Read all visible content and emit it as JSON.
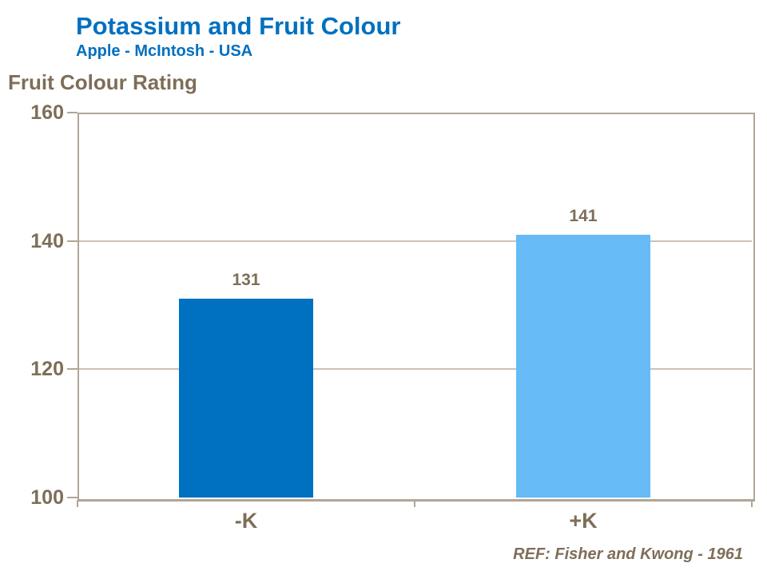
{
  "header": {
    "title": "Potassium and Fruit Colour",
    "subtitle": "Apple - McIntosh - USA"
  },
  "axis_title": "Fruit Colour Rating",
  "reference": "REF: Fisher and Kwong - 1961",
  "colors": {
    "title_blue": "#0070C0",
    "text_brown": "#7E6E58",
    "gridline": "#CBC2B3",
    "axis_border": "#B0A696",
    "bar_minus_k": "#0070C0",
    "bar_plus_k": "#66BBF7",
    "background": "#FFFFFF"
  },
  "chart_data": {
    "type": "bar",
    "title": "Potassium and Fruit Colour",
    "subtitle": "Apple - McIntosh - USA",
    "ylabel": "Fruit Colour Rating",
    "xlabel": "",
    "categories": [
      "-K",
      "+K"
    ],
    "values": [
      131,
      141
    ],
    "data_labels": [
      "131",
      "141"
    ],
    "bar_colors": [
      "#0070C0",
      "#66BBF7"
    ],
    "ylim": [
      100,
      160
    ],
    "yticks": [
      100,
      120,
      140,
      160
    ],
    "grid": true,
    "legend_position": "none",
    "reference": "REF: Fisher and Kwong - 1961"
  }
}
